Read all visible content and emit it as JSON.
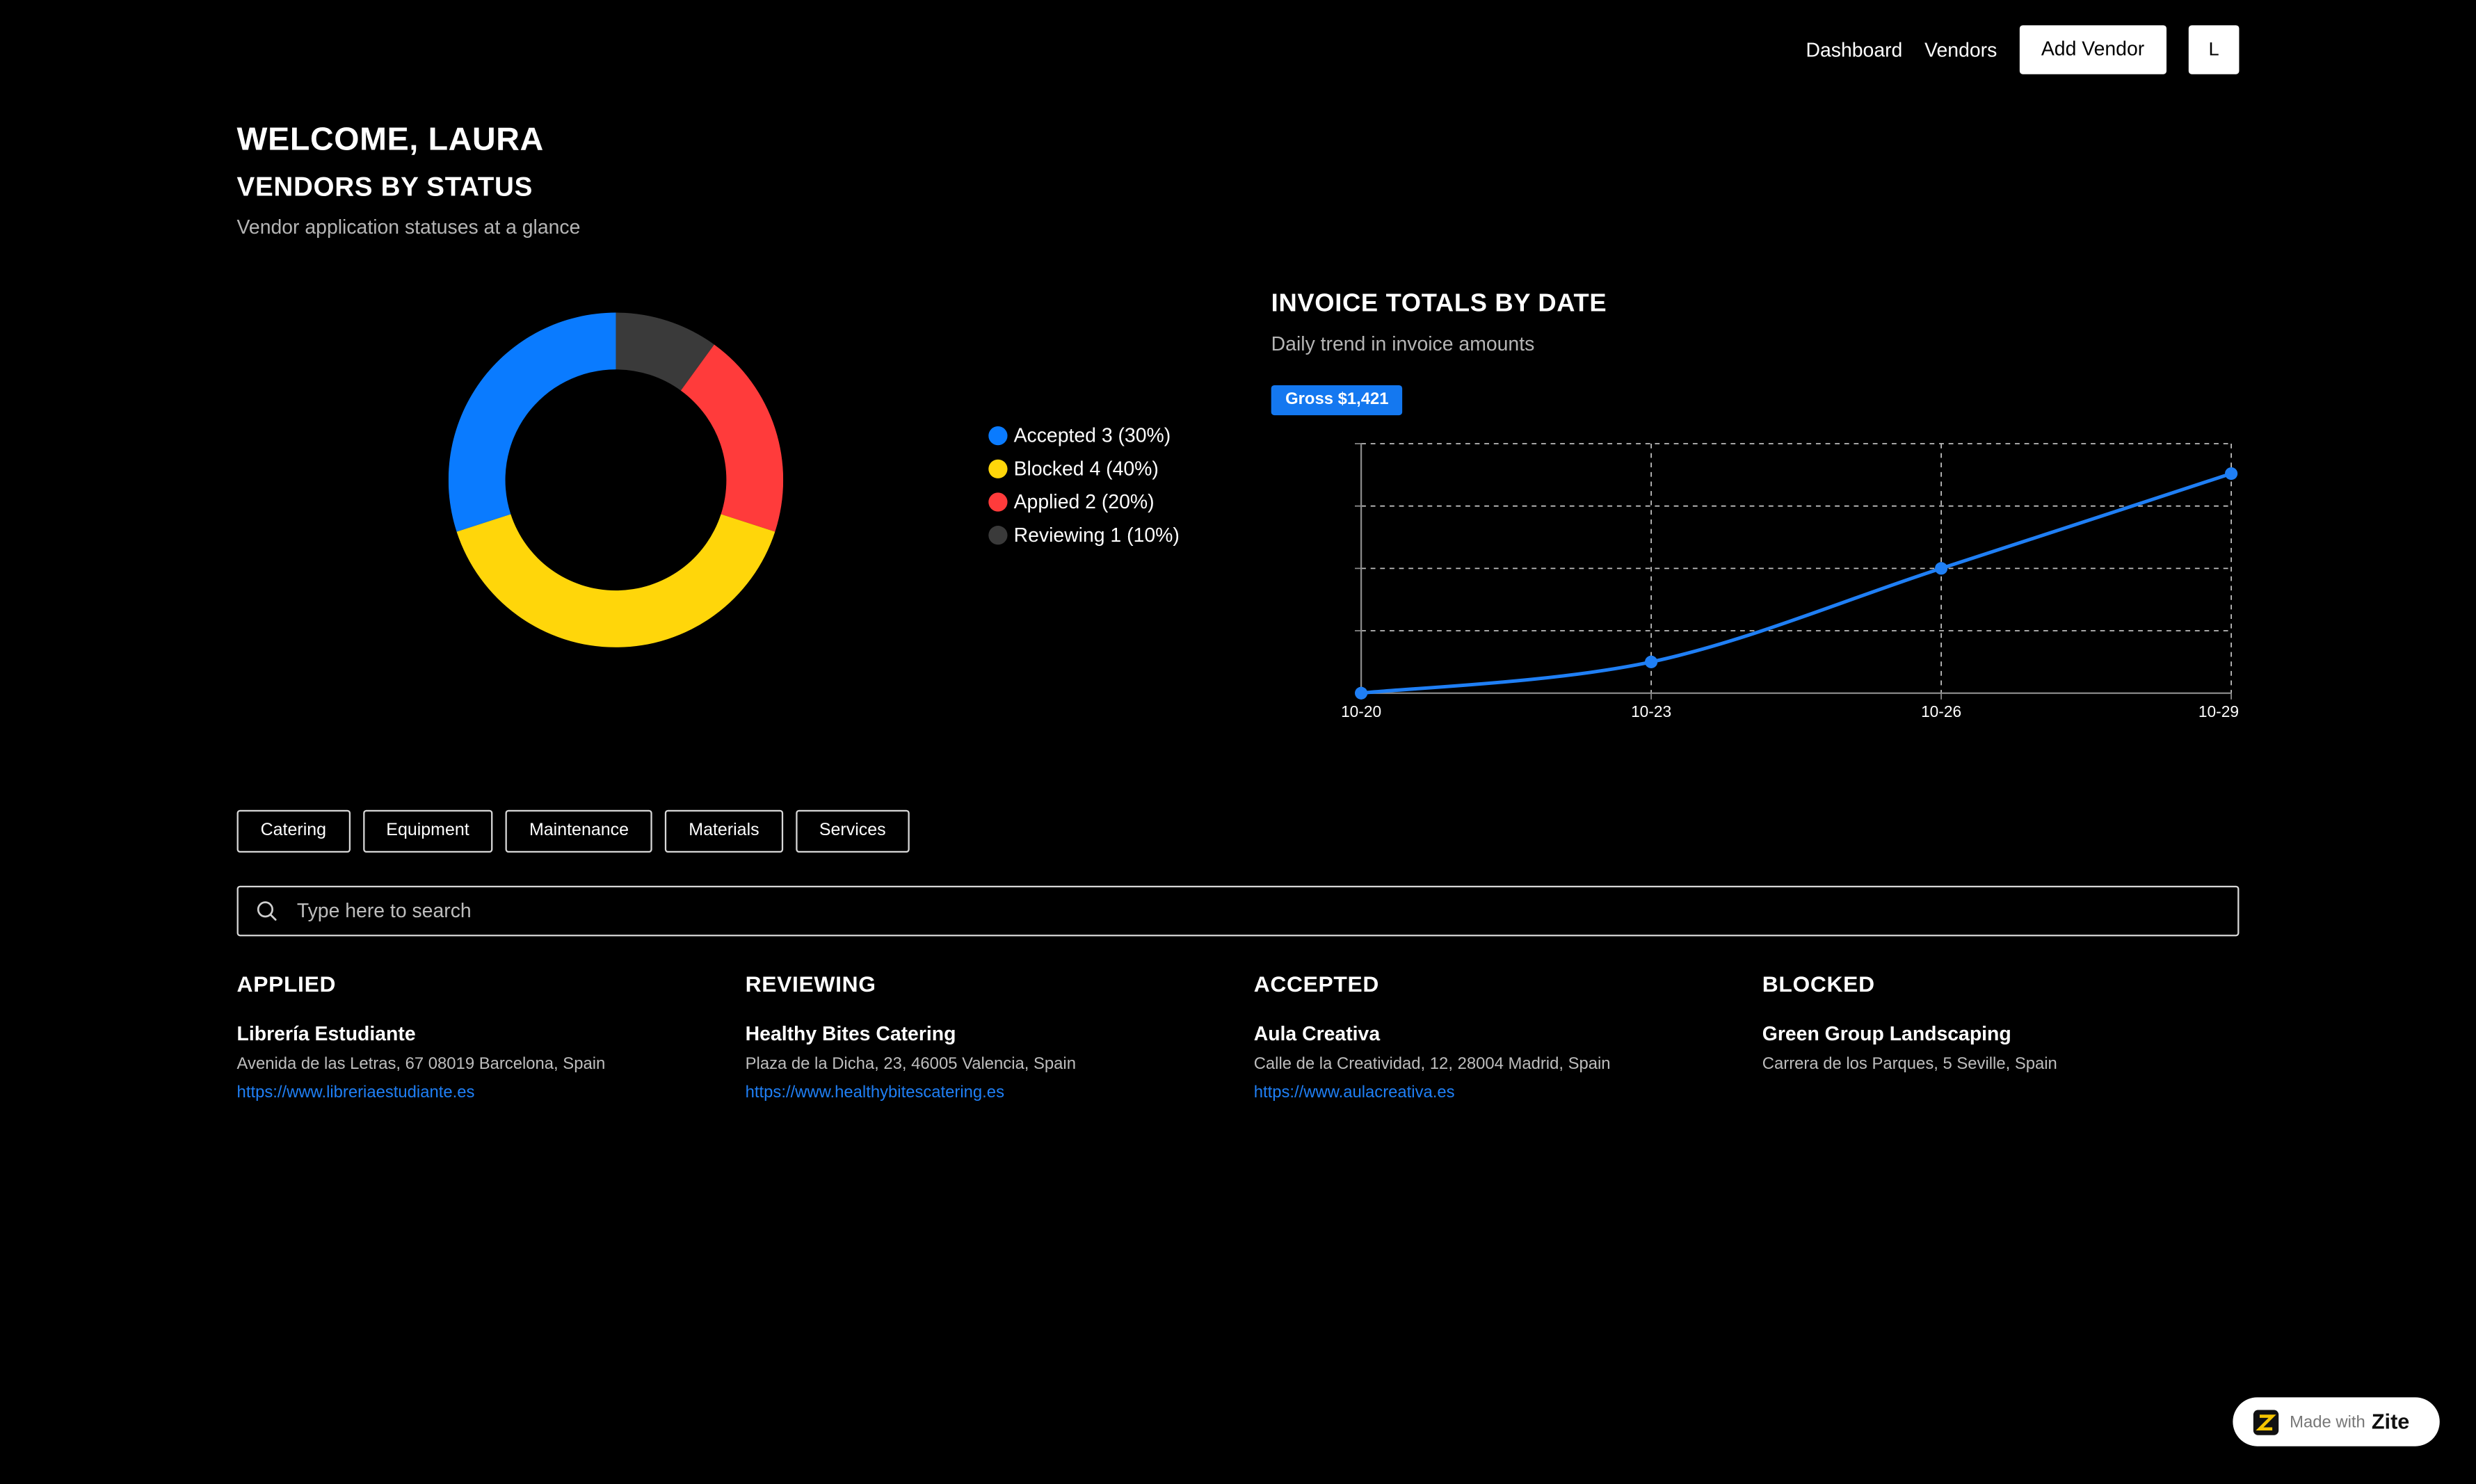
{
  "nav": {
    "dashboard": "Dashboard",
    "vendors": "Vendors",
    "add_vendor": "Add Vendor",
    "avatar_initial": "L"
  },
  "header": {
    "welcome": "WELCOME, LAURA",
    "status_title": "VENDORS BY STATUS",
    "status_subtitle": "Vendor application statuses at a glance"
  },
  "status_chart": {
    "type": "pie",
    "donut": true,
    "slices": [
      {
        "label": "Accepted",
        "count": 3,
        "percent": 30,
        "color": "#0a7bff"
      },
      {
        "label": "Blocked",
        "count": 4,
        "percent": 40,
        "color": "#ffd60a"
      },
      {
        "label": "Applied",
        "count": 2,
        "percent": 20,
        "color": "#ff3b3b"
      },
      {
        "label": "Reviewing",
        "count": 1,
        "percent": 10,
        "color": "#3a3a3a"
      }
    ],
    "legend": [
      "Accepted 3 (30%)",
      "Blocked 4 (40%)",
      "Applied 2 (20%)",
      "Reviewing 1 (10%)"
    ]
  },
  "invoice": {
    "title": "INVOICE TOTALS BY DATE",
    "subtitle": "Daily trend in invoice amounts",
    "gross_label": "Gross $1,421"
  },
  "chart_data": {
    "type": "line",
    "x": [
      "10-20",
      "10-23",
      "10-26",
      "10-29"
    ],
    "series": [
      {
        "values": [
          0,
          125,
          500,
          880
        ],
        "color": "#1f7ff5"
      }
    ],
    "ylim": [
      0,
      1000
    ],
    "grid": true,
    "xlabel": "",
    "ylabel": ""
  },
  "filters": [
    "Catering",
    "Equipment",
    "Maintenance",
    "Materials",
    "Services"
  ],
  "search": {
    "placeholder": "Type here to search"
  },
  "columns": [
    {
      "title": "APPLIED",
      "name": "Librería Estudiante",
      "address": "Avenida de las Letras, 67 08019 Barcelona, Spain",
      "url": "https://www.libreriaestudiante.es"
    },
    {
      "title": "REVIEWING",
      "name": "Healthy Bites Catering",
      "address": "Plaza de la Dicha, 23, 46005 Valencia, Spain",
      "url": "https://www.healthybitescatering.es"
    },
    {
      "title": "ACCEPTED",
      "name": "Aula Creativa",
      "address": "Calle de la Creatividad, 12, 28004 Madrid, Spain",
      "url": "https://www.aulacreativa.es"
    },
    {
      "title": "BLOCKED",
      "name": "Green Group Landscaping",
      "address": "Carrera de los Parques, 5 Seville, Spain",
      "url": ""
    }
  ],
  "badge": {
    "made_with": "Made with",
    "brand": "Zite"
  }
}
